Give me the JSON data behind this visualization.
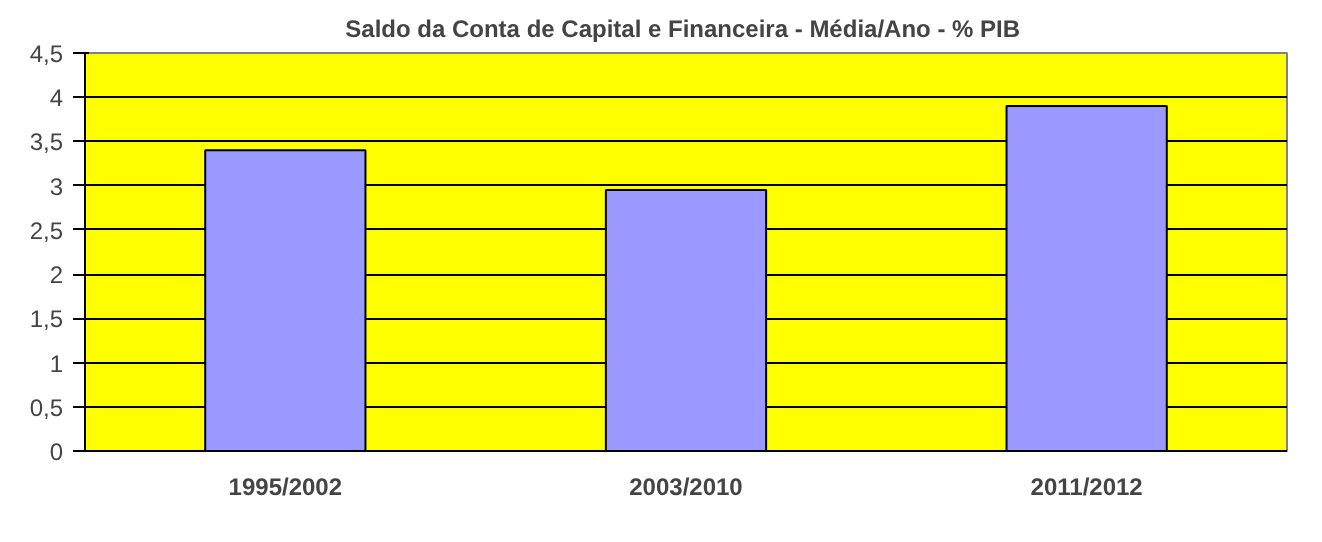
{
  "chart_data": {
    "type": "bar",
    "title": "Saldo da Conta  de Capital e Financeira - Média/Ano - % PIB",
    "categories": [
      "1995/2002",
      "2003/2010",
      "2011/2012"
    ],
    "values": [
      3.4,
      2.95,
      3.9
    ],
    "color": "#9999ff",
    "ylim": [
      0,
      4.5
    ],
    "yticks": [
      0,
      {
        "value": 0.5,
        "label": "0,5"
      },
      1,
      {
        "value": 1.5,
        "label": "1,5"
      },
      2,
      {
        "value": 2.5,
        "label": "2,5"
      },
      3,
      {
        "value": 3.5,
        "label": "3,5"
      },
      4,
      {
        "value": 4.5,
        "label": "4,5"
      }
    ],
    "grid": "y"
  }
}
